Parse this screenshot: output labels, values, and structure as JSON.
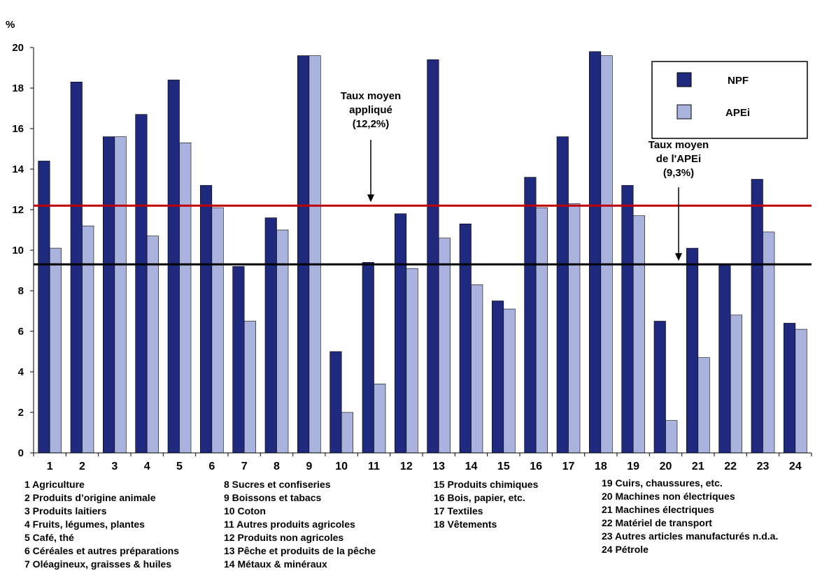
{
  "chart_data": {
    "type": "bar",
    "ylabel": "%",
    "ylim": [
      0,
      20
    ],
    "yticks": [
      0,
      2,
      4,
      6,
      8,
      10,
      12,
      14,
      16,
      18,
      20
    ],
    "categories": [
      "1",
      "2",
      "3",
      "4",
      "5",
      "6",
      "7",
      "8",
      "9",
      "10",
      "11",
      "12",
      "13",
      "14",
      "15",
      "16",
      "17",
      "18",
      "19",
      "20",
      "21",
      "22",
      "23",
      "24"
    ],
    "series": [
      {
        "name": "NPF",
        "color": "#1f2a7f",
        "values": [
          14.4,
          18.3,
          15.6,
          16.7,
          18.4,
          13.2,
          9.2,
          11.6,
          19.6,
          5.0,
          9.4,
          11.8,
          19.4,
          11.3,
          7.5,
          13.6,
          15.6,
          19.8,
          13.2,
          6.5,
          10.1,
          9.3,
          13.5,
          6.4
        ]
      },
      {
        "name": "APEi",
        "color": "#a9b3dd",
        "values": [
          10.1,
          11.2,
          15.6,
          10.7,
          15.3,
          12.1,
          6.5,
          11.0,
          19.6,
          2.0,
          3.4,
          9.1,
          10.6,
          8.3,
          7.1,
          12.1,
          12.3,
          19.6,
          11.7,
          1.6,
          4.7,
          6.8,
          10.9,
          6.1
        ]
      }
    ],
    "reference_lines": [
      {
        "value": 12.2,
        "color": "#c00000",
        "label": [
          "Taux moyen",
          "appliqué",
          "(12,2%)"
        ]
      },
      {
        "value": 9.3,
        "color": "#000000",
        "label": [
          "Taux moyen",
          "de l'APEi",
          "(9,3%)"
        ]
      }
    ],
    "legend": {
      "position": "top-right",
      "entries": [
        "NPF",
        "APEi"
      ]
    },
    "footnotes": [
      [
        "1 Agriculture",
        "2 Produits d’origine animale",
        "3 Produits laitiers",
        "4 Fruits, légumes, plantes",
        "5 Café, thé",
        "6 Céréales et autres préparations",
        "7 Oléagineux, graisses & huiles"
      ],
      [
        "8 Sucres et confiseries",
        "9 Boissons et tabacs",
        "10 Coton",
        "11 Autres produits agricoles",
        "12 Produits non agricoles",
        "13 Pêche et produits de la pêche",
        "14 Métaux & minéraux"
      ],
      [
        "15 Produits chimiques",
        "16 Bois, papier, etc.",
        "17 Textiles",
        "18 Vêtements"
      ],
      [
        "19 Cuirs, chaussures, etc.",
        "20 Machines non électriques",
        "21 Machines électriques",
        "22 Matériel de transport",
        "23 Autres articles manufacturés n.d.a.",
        "24 Pétrole"
      ]
    ]
  }
}
